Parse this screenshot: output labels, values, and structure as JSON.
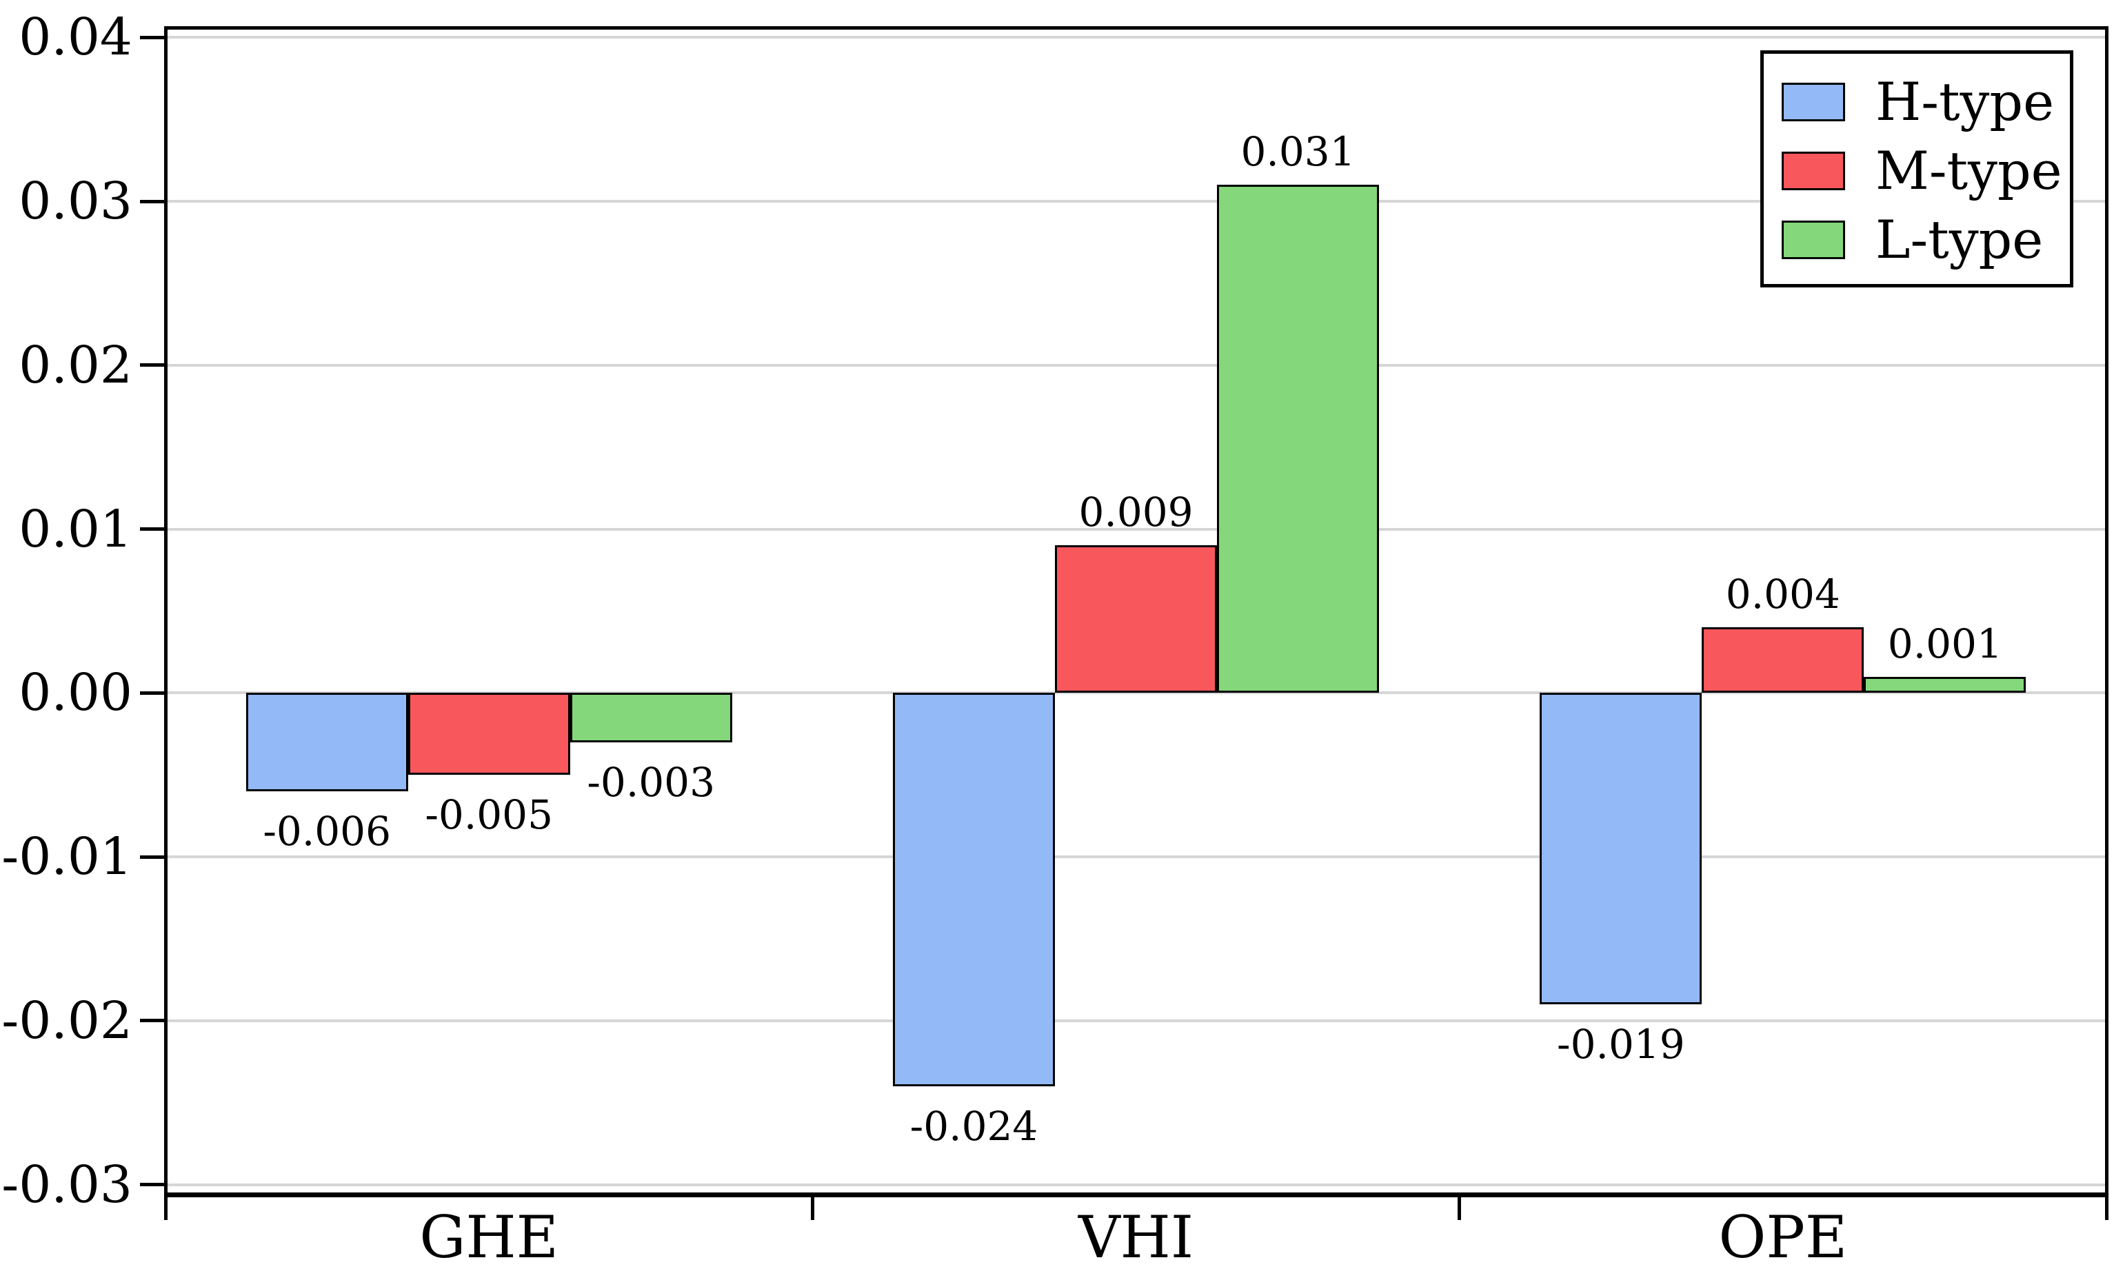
{
  "chart_data": {
    "type": "bar",
    "title": "",
    "xlabel": "",
    "ylabel": "",
    "categories": [
      "GHE",
      "VHI",
      "OPE"
    ],
    "series": [
      {
        "name": "H-type",
        "color": "#93b9f6",
        "values": [
          -0.006,
          -0.024,
          -0.019
        ],
        "value_labels": [
          "-0.006",
          "-0.024",
          "-0.019"
        ]
      },
      {
        "name": "M-type",
        "color": "#f8575c",
        "values": [
          -0.005,
          0.009,
          0.004
        ],
        "value_labels": [
          "-0.005",
          "0.009",
          "0.004"
        ]
      },
      {
        "name": "L-type",
        "color": "#84d87b",
        "values": [
          -0.003,
          0.031,
          0.001
        ],
        "value_labels": [
          "-0.003",
          "0.031",
          "0.001"
        ]
      }
    ],
    "ylim": [
      -0.0306,
      0.0406
    ],
    "yticks": [
      -0.03,
      -0.02,
      -0.01,
      0,
      0.01,
      0.02,
      0.03,
      0.04
    ],
    "ytick_labels": [
      "-0.03",
      "-0.02",
      "-0.01",
      "0.00",
      "0.01",
      "0.02",
      "0.03",
      "0.04"
    ],
    "grid": "horizontal",
    "legend_position": "top-right",
    "colors": {
      "grid": "#d6d6d6",
      "axis": "#000000",
      "bar_edge": "#000000",
      "background": "#ffffff"
    }
  }
}
